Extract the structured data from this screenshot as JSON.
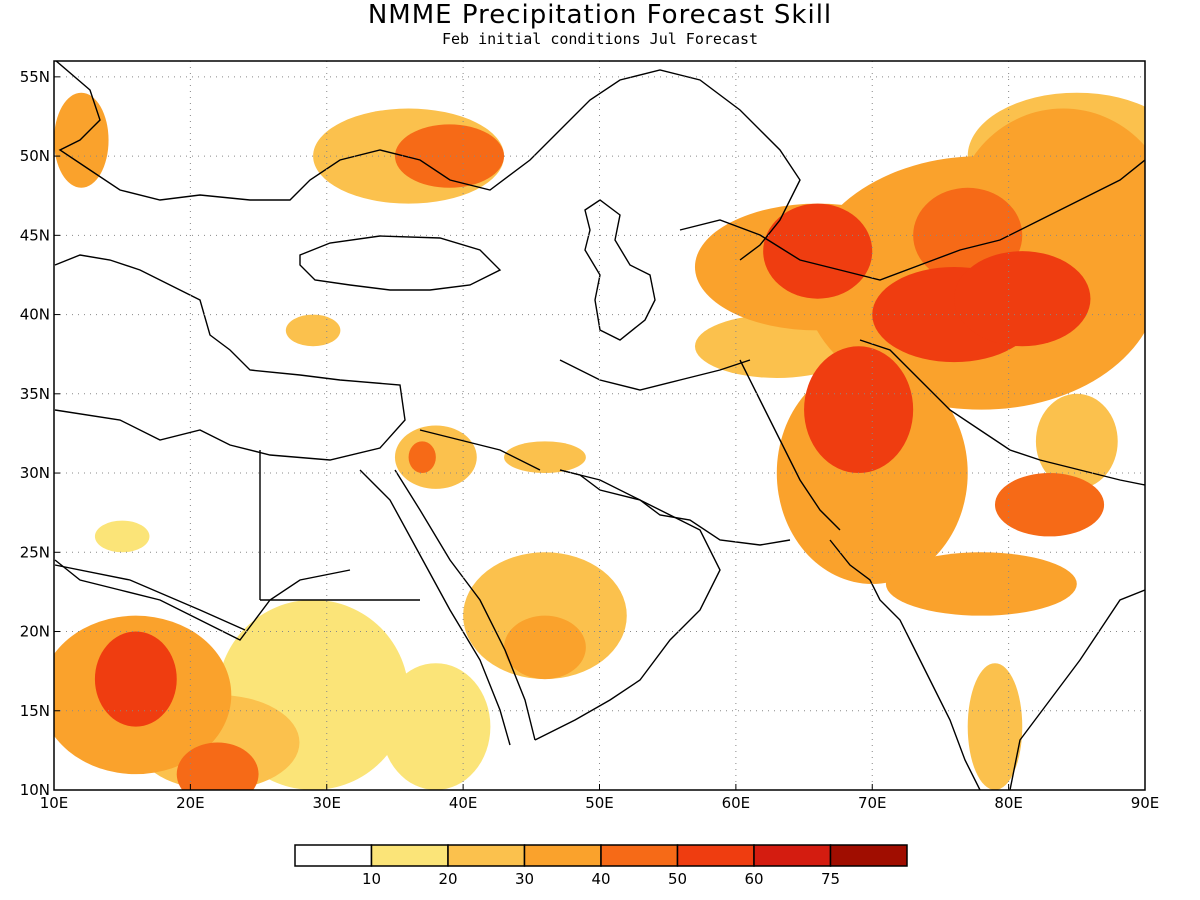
{
  "header": {
    "title": "NMME Precipitation Forecast Skill",
    "subtitle": "Feb initial conditions  Jul Forecast"
  },
  "map": {
    "lon_range": [
      10,
      90
    ],
    "lat_range": [
      10,
      56
    ],
    "lon_ticks": [
      {
        "value": 10,
        "label": "10E"
      },
      {
        "value": 20,
        "label": "20E"
      },
      {
        "value": 30,
        "label": "30E"
      },
      {
        "value": 40,
        "label": "40E"
      },
      {
        "value": 50,
        "label": "50E"
      },
      {
        "value": 60,
        "label": "60E"
      },
      {
        "value": 70,
        "label": "70E"
      },
      {
        "value": 80,
        "label": "80E"
      },
      {
        "value": 90,
        "label": "90E"
      }
    ],
    "lat_ticks": [
      {
        "value": 10,
        "label": "10N"
      },
      {
        "value": 15,
        "label": "15N"
      },
      {
        "value": 20,
        "label": "20N"
      },
      {
        "value": 25,
        "label": "25N"
      },
      {
        "value": 30,
        "label": "30N"
      },
      {
        "value": 35,
        "label": "35N"
      },
      {
        "value": 40,
        "label": "40N"
      },
      {
        "value": 45,
        "label": "45N"
      },
      {
        "value": 50,
        "label": "50N"
      },
      {
        "value": 55,
        "label": "55N"
      }
    ],
    "skill_regions": [
      {
        "lon": 76,
        "lat": 40,
        "rx": 6,
        "ry": 3,
        "level": 4
      },
      {
        "lon": 81,
        "lat": 41,
        "rx": 5,
        "ry": 3,
        "level": 4
      },
      {
        "lon": 78,
        "lat": 42,
        "rx": 13,
        "ry": 8,
        "level": 2
      },
      {
        "lon": 84,
        "lat": 46,
        "rx": 8,
        "ry": 7,
        "level": 2
      },
      {
        "lon": 77,
        "lat": 45,
        "rx": 4,
        "ry": 3,
        "level": 3
      },
      {
        "lon": 66,
        "lat": 44,
        "rx": 4,
        "ry": 3,
        "level": 4
      },
      {
        "lon": 66,
        "lat": 43,
        "rx": 9,
        "ry": 4,
        "level": 2
      },
      {
        "lon": 85,
        "lat": 50,
        "rx": 8,
        "ry": 4,
        "level": 1
      },
      {
        "lon": 69,
        "lat": 34,
        "rx": 4,
        "ry": 4,
        "level": 4
      },
      {
        "lon": 70,
        "lat": 30,
        "rx": 7,
        "ry": 7,
        "level": 2
      },
      {
        "lon": 78,
        "lat": 23,
        "rx": 7,
        "ry": 2,
        "level": 2
      },
      {
        "lon": 83,
        "lat": 28,
        "rx": 4,
        "ry": 2,
        "level": 3
      },
      {
        "lon": 85,
        "lat": 32,
        "rx": 3,
        "ry": 3,
        "level": 1
      },
      {
        "lon": 79,
        "lat": 14,
        "rx": 2,
        "ry": 4,
        "level": 1
      },
      {
        "lon": 16,
        "lat": 17,
        "rx": 3,
        "ry": 3,
        "level": 4
      },
      {
        "lon": 16,
        "lat": 16,
        "rx": 7,
        "ry": 5,
        "level": 2
      },
      {
        "lon": 22,
        "lat": 13,
        "rx": 6,
        "ry": 3,
        "level": 1
      },
      {
        "lon": 22,
        "lat": 11,
        "rx": 3,
        "ry": 2,
        "level": 3
      },
      {
        "lon": 29,
        "lat": 16,
        "rx": 7,
        "ry": 6,
        "level": 0
      },
      {
        "lon": 46,
        "lat": 21,
        "rx": 6,
        "ry": 4,
        "level": 1
      },
      {
        "lon": 46,
        "lat": 19,
        "rx": 3,
        "ry": 2,
        "level": 2
      },
      {
        "lon": 38,
        "lat": 14,
        "rx": 4,
        "ry": 4,
        "level": 0
      },
      {
        "lon": 39,
        "lat": 50,
        "rx": 4,
        "ry": 2,
        "level": 3
      },
      {
        "lon": 36,
        "lat": 50,
        "rx": 7,
        "ry": 3,
        "level": 1
      },
      {
        "lon": 12,
        "lat": 51,
        "rx": 2,
        "ry": 3,
        "level": 2
      },
      {
        "lon": 37,
        "lat": 31,
        "rx": 1,
        "ry": 1,
        "level": 3
      },
      {
        "lon": 38,
        "lat": 31,
        "rx": 3,
        "ry": 2,
        "level": 1
      },
      {
        "lon": 46,
        "lat": 31,
        "rx": 3,
        "ry": 1,
        "level": 1
      },
      {
        "lon": 29,
        "lat": 39,
        "rx": 2,
        "ry": 1,
        "level": 1
      },
      {
        "lon": 63,
        "lat": 38,
        "rx": 6,
        "ry": 2,
        "level": 1
      },
      {
        "lon": 15,
        "lat": 26,
        "rx": 2,
        "ry": 1,
        "level": 0
      }
    ],
    "colors": [
      "#fbe478",
      "#fbc14d",
      "#faa22c",
      "#f66a17",
      "#ef3d10",
      "#d41c10",
      "#a00d00"
    ]
  },
  "colorbar": {
    "labels": [
      "10",
      "20",
      "30",
      "40",
      "50",
      "60",
      "75"
    ],
    "colors": [
      "#ffffff",
      "#fbe478",
      "#fbc14d",
      "#faa22c",
      "#f66a17",
      "#ef3d10",
      "#d41c10",
      "#a00d00"
    ]
  }
}
